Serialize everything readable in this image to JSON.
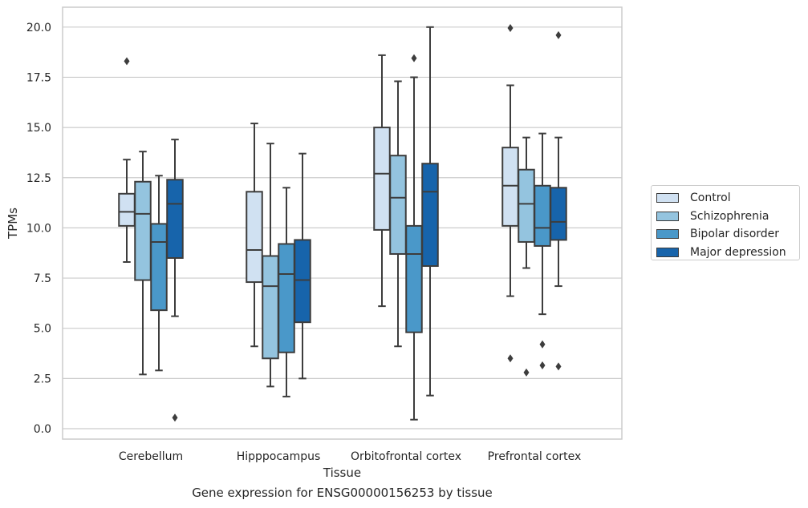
{
  "chart_data": {
    "type": "box",
    "xlabel": "Tissue",
    "ylabel": "TPMs",
    "caption": "Gene expression for ENSG00000156253 by tissue",
    "ylim": [
      -0.4,
      21
    ],
    "yticks": [
      "0.0",
      "2.5",
      "5.0",
      "7.5",
      "10.0",
      "12.5",
      "15.0",
      "17.5",
      "20.0"
    ],
    "grid": "horizontal",
    "legend_position": "right",
    "categories": [
      "Cerebellum",
      "Hipppocampus",
      "Orbitofrontal cortex",
      "Prefrontal cortex"
    ],
    "series": [
      {
        "name": "Control",
        "color": "#d0e1f2",
        "boxes": [
          {
            "whislo": 8.3,
            "q1": 10.1,
            "med": 10.8,
            "q3": 11.7,
            "whishi": 13.4,
            "fliers": [
              18.3
            ]
          },
          {
            "whislo": 4.1,
            "q1": 7.3,
            "med": 8.9,
            "q3": 11.8,
            "whishi": 15.2,
            "fliers": []
          },
          {
            "whislo": 6.1,
            "q1": 9.9,
            "med": 12.7,
            "q3": 15.0,
            "whishi": 18.6,
            "fliers": []
          },
          {
            "whislo": 6.6,
            "q1": 10.1,
            "med": 12.1,
            "q3": 14.0,
            "whishi": 17.1,
            "fliers": [
              19.95,
              3.5
            ]
          }
        ]
      },
      {
        "name": "Schizophrenia",
        "color": "#94c4df",
        "boxes": [
          {
            "whislo": 2.7,
            "q1": 7.4,
            "med": 10.7,
            "q3": 12.3,
            "whishi": 13.8,
            "fliers": []
          },
          {
            "whislo": 2.1,
            "q1": 3.5,
            "med": 7.1,
            "q3": 8.6,
            "whishi": 14.2,
            "fliers": []
          },
          {
            "whislo": 4.1,
            "q1": 8.7,
            "med": 11.5,
            "q3": 13.6,
            "whishi": 17.3,
            "fliers": []
          },
          {
            "whislo": 8.0,
            "q1": 9.3,
            "med": 11.2,
            "q3": 12.9,
            "whishi": 14.5,
            "fliers": [
              2.8
            ]
          }
        ]
      },
      {
        "name": "Bipolar disorder",
        "color": "#4a98c9",
        "boxes": [
          {
            "whislo": 2.9,
            "q1": 5.9,
            "med": 9.3,
            "q3": 10.2,
            "whishi": 12.6,
            "fliers": []
          },
          {
            "whislo": 1.6,
            "q1": 3.8,
            "med": 7.7,
            "q3": 9.2,
            "whishi": 12.0,
            "fliers": []
          },
          {
            "whislo": 0.45,
            "q1": 4.8,
            "med": 8.7,
            "q3": 10.1,
            "whishi": 17.5,
            "fliers": [
              18.45
            ]
          },
          {
            "whislo": 5.7,
            "q1": 9.1,
            "med": 10.0,
            "q3": 12.1,
            "whishi": 14.7,
            "fliers": [
              4.2,
              3.15
            ]
          }
        ]
      },
      {
        "name": "Major depression",
        "color": "#1764ab",
        "boxes": [
          {
            "whislo": 5.6,
            "q1": 8.5,
            "med": 11.2,
            "q3": 12.4,
            "whishi": 14.4,
            "fliers": [
              0.55
            ]
          },
          {
            "whislo": 2.5,
            "q1": 5.3,
            "med": 7.4,
            "q3": 9.4,
            "whishi": 13.7,
            "fliers": []
          },
          {
            "whislo": 1.65,
            "q1": 8.1,
            "med": 11.8,
            "q3": 13.2,
            "whishi": 20.0,
            "fliers": []
          },
          {
            "whislo": 7.1,
            "q1": 9.4,
            "med": 10.3,
            "q3": 12.0,
            "whishi": 14.5,
            "fliers": [
              19.6,
              3.1
            ]
          }
        ]
      }
    ]
  }
}
